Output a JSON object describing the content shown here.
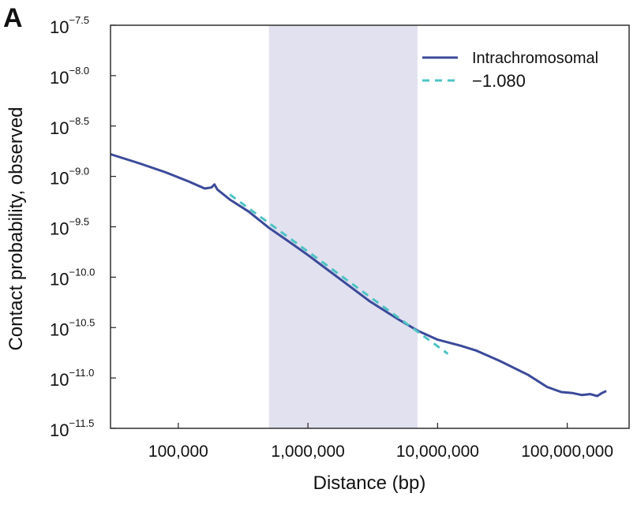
{
  "panel_label": "A",
  "chart_data": {
    "type": "line",
    "title": "",
    "xlabel": "Distance (bp)",
    "ylabel": "Contact probability, observed",
    "x_scale": "log",
    "y_scale": "log",
    "xlim": [
      30000,
      300000000
    ],
    "ylim": [
      -11.5,
      -7.5
    ],
    "x_ticks": [
      {
        "value": 100000,
        "label": "100,000"
      },
      {
        "value": 1000000,
        "label": "1,000,000"
      },
      {
        "value": 10000000,
        "label": "10,000,000"
      },
      {
        "value": 100000000,
        "label": "100,000,000"
      }
    ],
    "y_ticks": [
      {
        "value": -7.5,
        "base": "10",
        "exp": "−7.5"
      },
      {
        "value": -8.0,
        "base": "10",
        "exp": "−8.0"
      },
      {
        "value": -8.5,
        "base": "10",
        "exp": "−8.5"
      },
      {
        "value": -9.0,
        "base": "10",
        "exp": "−9.0"
      },
      {
        "value": -9.5,
        "base": "10",
        "exp": "−9.5"
      },
      {
        "value": -10.0,
        "base": "10",
        "exp": "−10.0"
      },
      {
        "value": -10.5,
        "base": "10",
        "exp": "−10.5"
      },
      {
        "value": -11.0,
        "base": "10",
        "exp": "−11.0"
      },
      {
        "value": -11.5,
        "base": "10",
        "exp": "−11.5"
      }
    ],
    "grid": false,
    "legend": "top-right",
    "shaded_region": {
      "x": [
        500000,
        7000000
      ],
      "color": "#dcdcec"
    },
    "series": [
      {
        "name": "Intrachromosomal",
        "style": "solid",
        "color": "#3b4a9a",
        "points": [
          [
            30000,
            -8.78
          ],
          [
            50000,
            -8.87
          ],
          [
            80000,
            -8.96
          ],
          [
            120000,
            -9.05
          ],
          [
            160000,
            -9.12
          ],
          [
            180000,
            -9.11
          ],
          [
            190000,
            -9.08
          ],
          [
            200000,
            -9.13
          ],
          [
            250000,
            -9.23
          ],
          [
            350000,
            -9.35
          ],
          [
            500000,
            -9.51
          ],
          [
            700000,
            -9.64
          ],
          [
            1000000,
            -9.78
          ],
          [
            1500000,
            -9.95
          ],
          [
            2000000,
            -10.07
          ],
          [
            3000000,
            -10.24
          ],
          [
            5000000,
            -10.42
          ],
          [
            7000000,
            -10.53
          ],
          [
            10000000,
            -10.62
          ],
          [
            15000000,
            -10.68
          ],
          [
            20000000,
            -10.73
          ],
          [
            30000000,
            -10.83
          ],
          [
            50000000,
            -10.97
          ],
          [
            70000000,
            -11.09
          ],
          [
            90000000,
            -11.14
          ],
          [
            110000000,
            -11.15
          ],
          [
            130000000,
            -11.17
          ],
          [
            150000000,
            -11.16
          ],
          [
            170000000,
            -11.18
          ],
          [
            185000000,
            -11.15
          ],
          [
            200000000,
            -11.13
          ]
        ]
      },
      {
        "name": "−1.080",
        "style": "dashed",
        "color": "#4dc3c4",
        "points": [
          [
            250000,
            -9.18
          ],
          [
            12000000,
            -10.76
          ]
        ]
      }
    ]
  }
}
